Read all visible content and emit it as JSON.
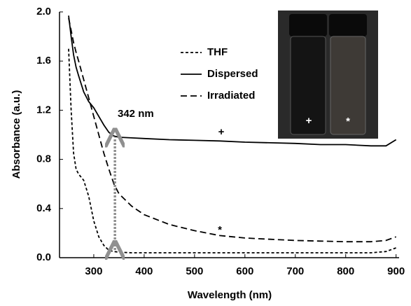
{
  "chart_data": {
    "type": "line",
    "x_label": "Wavelength (nm)",
    "y_label": "Absorbance (a.u.)",
    "x": [
      250,
      255,
      260,
      265,
      270,
      280,
      290,
      300,
      310,
      320,
      330,
      340,
      350,
      375,
      400,
      450,
      500,
      550,
      600,
      650,
      700,
      750,
      800,
      850,
      880,
      900
    ],
    "series": [
      {
        "name": "THF",
        "color": "#000000",
        "dash": "4 3",
        "values": [
          1.7,
          1.2,
          0.85,
          0.72,
          0.68,
          0.63,
          0.5,
          0.3,
          0.17,
          0.1,
          0.06,
          0.05,
          0.045,
          0.04,
          0.04,
          0.04,
          0.04,
          0.04,
          0.04,
          0.04,
          0.04,
          0.04,
          0.04,
          0.04,
          0.05,
          0.08
        ]
      },
      {
        "name": "Dispersed",
        "color": "#000000",
        "dash": "none",
        "values": [
          1.97,
          1.8,
          1.65,
          1.55,
          1.48,
          1.35,
          1.27,
          1.22,
          1.15,
          1.08,
          1.02,
          0.99,
          0.98,
          0.975,
          0.97,
          0.96,
          0.955,
          0.95,
          0.94,
          0.935,
          0.93,
          0.92,
          0.92,
          0.91,
          0.91,
          0.96
        ]
      },
      {
        "name": "Irradiated",
        "color": "#000000",
        "dash": "9 5",
        "values": [
          1.95,
          1.85,
          1.75,
          1.67,
          1.6,
          1.45,
          1.3,
          1.15,
          1.0,
          0.85,
          0.72,
          0.6,
          0.52,
          0.42,
          0.35,
          0.27,
          0.22,
          0.18,
          0.16,
          0.15,
          0.14,
          0.135,
          0.13,
          0.13,
          0.14,
          0.17
        ]
      }
    ],
    "xlim": [
      232,
      906
    ],
    "xticks": [
      300,
      400,
      500,
      600,
      700,
      800,
      900
    ],
    "ylim": [
      0,
      2.0
    ],
    "yticks": [
      {
        "value": 0,
        "label": "0.0"
      },
      0.4,
      0.8,
      1.2,
      1.6,
      {
        "value": 2.0,
        "label": "2.0"
      }
    ],
    "grid": false,
    "legend": "top-center",
    "arrow": {
      "x": 342,
      "from": 0.04,
      "to": 1.0,
      "color": "#909090"
    },
    "annotations": [
      {
        "text": "342 nm"
      },
      {
        "text": "+"
      },
      {
        "text": "*"
      }
    ]
  },
  "inset": {
    "labels": [
      "+",
      "*"
    ]
  }
}
